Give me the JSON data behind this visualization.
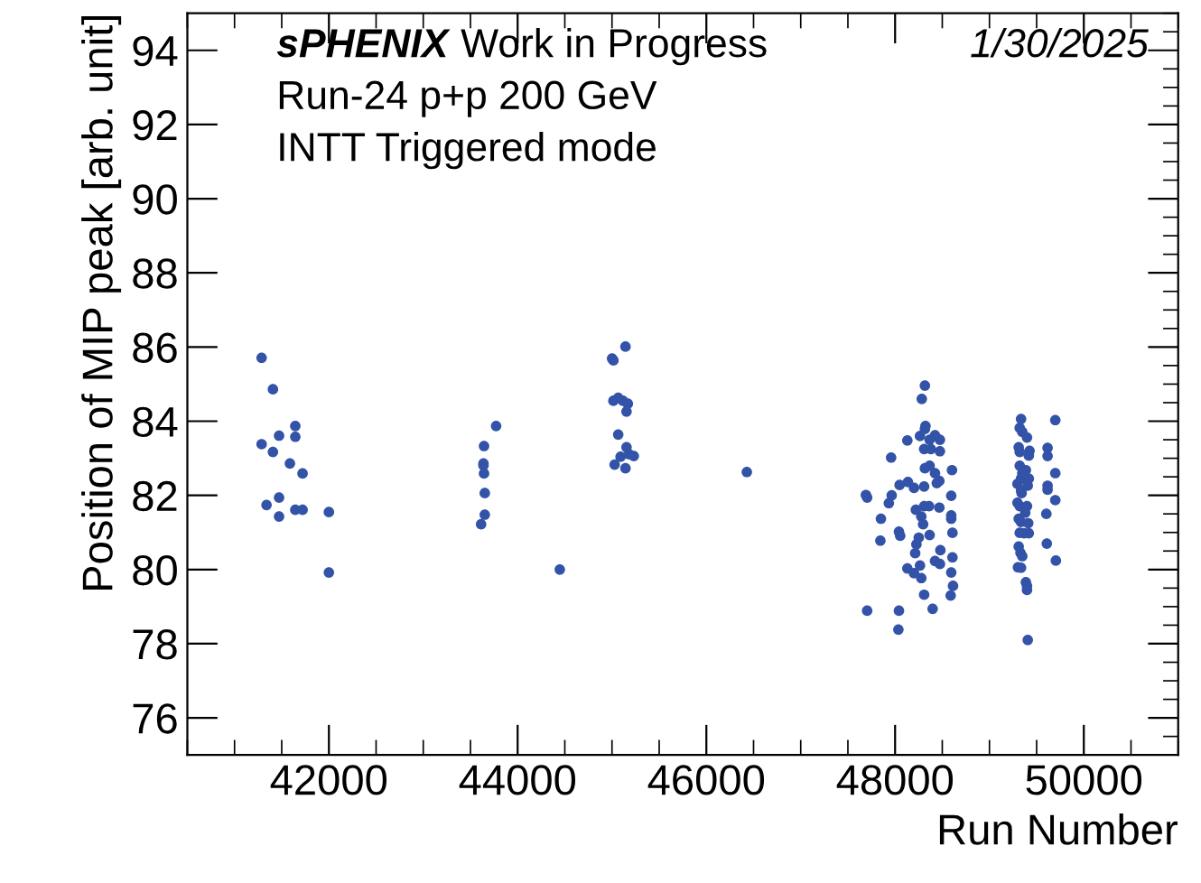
{
  "chart_data": {
    "type": "scatter",
    "xlabel": "Run Number",
    "ylabel": "Position of MIP peak [arb. unit]",
    "annotations": [
      "sPHENIX Work in Progress",
      "1/30/2025",
      "Run-24 p+p 200 GeV",
      "INTT Triggered mode"
    ],
    "xlim": [
      40500,
      51000
    ],
    "xticks": [
      42000,
      44000,
      46000,
      48000,
      50000
    ],
    "ylim": [
      75,
      95
    ],
    "yticks": [
      76,
      78,
      80,
      82,
      84,
      86,
      88,
      90,
      92,
      94
    ],
    "grid": false,
    "marker": "circle",
    "series": [
      {
        "color": "#3353a8",
        "x": [
          41287,
          41407,
          41644,
          41472,
          41644,
          41287,
          41407,
          41587,
          41721,
          41472,
          41339,
          41472,
          41644,
          41721,
          42000,
          42000,
          43644,
          43638,
          43638,
          43644,
          43652,
          43652,
          43613,
          43772,
          44447,
          45143,
          45001,
          45015,
          45015,
          45066,
          45116,
          45168,
          45154,
          45066,
          45154,
          45091,
          45028,
          45143,
          45231,
          45181,
          46429,
          48316,
          48283,
          48322,
          48316,
          48130,
          48264,
          48366,
          48423,
          48475,
          48308,
          48379,
          48475,
          47958,
          48316,
          48366,
          48423,
          48469,
          48442,
          48603,
          48136,
          48048,
          48201,
          48308,
          47691,
          47704,
          47964,
          47934,
          48595,
          48220,
          48308,
          48360,
          48469,
          48278,
          47850,
          48595,
          48595,
          48297,
          48041,
          48054,
          48366,
          48608,
          47844,
          48251,
          48226,
          48213,
          48480,
          48423,
          48475,
          48608,
          48264,
          48130,
          48201,
          48278,
          48595,
          48614,
          48589,
          48308,
          47704,
          48041,
          48398,
          48035,
          49335,
          49321,
          49348,
          49398,
          49698,
          49310,
          49321,
          49425,
          49417,
          49616,
          49616,
          49321,
          49386,
          49348,
          49698,
          49335,
          49417,
          49297,
          49406,
          49616,
          49616,
          49335,
          49341,
          49698,
          49297,
          49321,
          49398,
          49379,
          49603,
          49310,
          49335,
          49411,
          49321,
          49367,
          49417,
          49310,
          49329,
          49348,
          49608,
          49704,
          49302,
          49335,
          49386,
          49398,
          49398,
          49406
        ],
        "values": [
          85.71,
          84.86,
          83.87,
          83.61,
          83.58,
          83.38,
          83.17,
          82.86,
          82.59,
          81.94,
          81.74,
          81.43,
          81.61,
          81.61,
          81.55,
          79.92,
          83.33,
          82.86,
          82.81,
          82.59,
          82.06,
          81.48,
          81.22,
          83.87,
          80.0,
          86.01,
          85.69,
          85.64,
          84.55,
          84.63,
          84.55,
          84.47,
          84.26,
          83.64,
          83.3,
          83.04,
          82.83,
          82.73,
          83.06,
          83.11,
          82.63,
          84.96,
          84.6,
          83.87,
          83.79,
          83.48,
          83.6,
          83.5,
          83.62,
          83.5,
          83.25,
          83.25,
          83.19,
          83.02,
          82.73,
          82.8,
          82.6,
          82.39,
          82.33,
          82.68,
          82.36,
          82.28,
          82.2,
          82.24,
          82.01,
          81.94,
          82.0,
          81.79,
          81.99,
          81.61,
          81.71,
          81.71,
          81.67,
          81.43,
          81.37,
          81.46,
          81.37,
          81.22,
          81.02,
          80.91,
          80.93,
          80.99,
          80.78,
          80.86,
          80.68,
          80.44,
          80.52,
          80.23,
          80.15,
          80.33,
          80.11,
          80.03,
          79.9,
          79.77,
          79.92,
          79.56,
          79.3,
          79.32,
          78.89,
          78.89,
          78.94,
          78.38,
          84.06,
          83.82,
          83.71,
          83.56,
          84.03,
          83.3,
          83.17,
          83.2,
          83.07,
          83.28,
          83.06,
          82.8,
          82.68,
          82.6,
          82.6,
          82.45,
          82.45,
          82.31,
          82.26,
          82.26,
          82.15,
          82.13,
          82.06,
          81.87,
          81.8,
          81.71,
          81.71,
          81.53,
          81.5,
          81.37,
          81.28,
          81.25,
          80.99,
          80.98,
          80.98,
          80.62,
          80.45,
          80.36,
          80.7,
          80.24,
          80.06,
          80.05,
          79.66,
          79.56,
          79.45,
          78.1
        ]
      }
    ]
  }
}
